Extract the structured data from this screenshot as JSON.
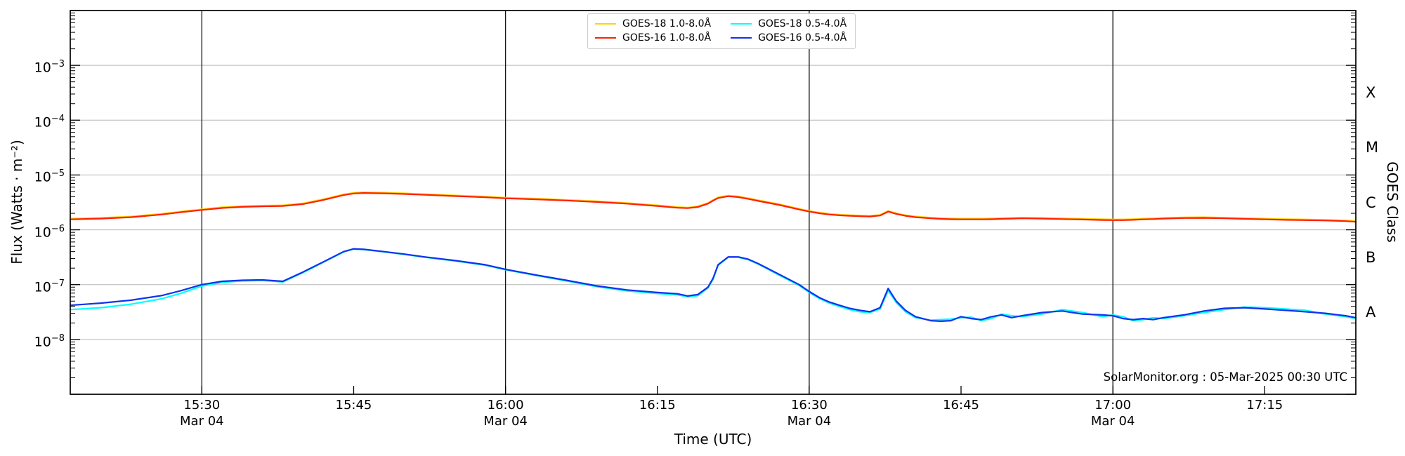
{
  "figure": {
    "annotation": "SolarMonitor.org : 05-Mar-2025 00:30 UTC"
  },
  "legend": {
    "items": [
      {
        "label": "GOES-18 1.0-8.0Å",
        "color": "#ffd300"
      },
      {
        "label": "GOES-16 1.0-8.0Å",
        "color": "#ff2000"
      },
      {
        "label": "GOES-18 0.5-4.0Å",
        "color": "#00ffff"
      },
      {
        "label": "GOES-16 0.5-4.0Å",
        "color": "#1132ee"
      }
    ]
  },
  "chart_data": {
    "type": "line",
    "title": "",
    "xlabel": "Time (UTC)",
    "ylabel": "Flux (Watts · m⁻²)",
    "ylabel_right": "GOES Class",
    "x_axis_note": "minutes after 15:17 UTC on 04-Mar-2025",
    "t_min": 0,
    "t_max": 127,
    "log_top": -2,
    "log_bottom": -9,
    "grid_on": true,
    "grid_color": "#b6b6b6",
    "vline_color": "#151515",
    "legend_position": "top-center",
    "x_ticks": [
      {
        "t": 13,
        "label": "15:30",
        "sublabel": "Mar 04",
        "gridline": true
      },
      {
        "t": 28,
        "label": "15:45",
        "gridline": false
      },
      {
        "t": 43,
        "label": "16:00",
        "sublabel": "Mar 04",
        "gridline": true
      },
      {
        "t": 58,
        "label": "16:15",
        "gridline": false
      },
      {
        "t": 73,
        "label": "16:30",
        "sublabel": "Mar 04",
        "gridline": true
      },
      {
        "t": 88,
        "label": "16:45",
        "gridline": false
      },
      {
        "t": 103,
        "label": "17:00",
        "sublabel": "Mar 04",
        "gridline": true
      },
      {
        "t": 118,
        "label": "17:15",
        "gridline": false
      }
    ],
    "y_ticks": [
      {
        "log": -3,
        "base": "10",
        "exp": "−3"
      },
      {
        "log": -4,
        "base": "10",
        "exp": "−4"
      },
      {
        "log": -5,
        "base": "10",
        "exp": "−5"
      },
      {
        "log": -6,
        "base": "10",
        "exp": "−6"
      },
      {
        "log": -7,
        "base": "10",
        "exp": "−7"
      },
      {
        "log": -8,
        "base": "10",
        "exp": "−8"
      }
    ],
    "class_labels": [
      {
        "label": "X",
        "log": -3.5
      },
      {
        "label": "M",
        "log": -4.5
      },
      {
        "label": "C",
        "log": -5.5
      },
      {
        "label": "B",
        "log": -6.5
      },
      {
        "label": "A",
        "log": -7.5
      }
    ],
    "x": [
      0,
      3,
      6,
      9,
      11,
      13,
      15,
      17,
      19,
      21,
      23,
      25,
      27,
      28,
      29,
      31,
      33,
      35,
      38,
      41,
      43,
      46,
      49,
      52,
      55,
      58,
      60,
      61,
      62,
      63,
      63.5,
      64,
      65,
      66,
      67,
      68,
      70,
      72,
      73,
      74,
      75,
      76,
      77,
      78,
      79,
      80,
      80.8,
      81.6,
      82.5,
      83.5,
      85,
      86,
      87,
      88,
      89,
      90,
      91,
      92,
      93,
      94,
      96,
      98,
      100,
      102,
      103,
      104,
      105,
      106,
      107,
      108,
      110,
      112,
      114,
      116,
      118,
      120,
      122,
      124,
      126,
      127
    ],
    "series": [
      {
        "name": "GOES-18 1.0-8.0Å",
        "color": "#ffd300",
        "width": 2.2,
        "values": [
          1.6e-06,
          1.65e-06,
          1.75e-06,
          1.96e-06,
          2.16e-06,
          2.37e-06,
          2.58e-06,
          2.7e-06,
          2.76e-06,
          2.8e-06,
          3.04e-06,
          3.61e-06,
          4.43e-06,
          4.74e-06,
          4.84e-06,
          4.76e-06,
          4.64e-06,
          4.48e-06,
          4.24e-06,
          4.04e-06,
          3.86e-06,
          3.71e-06,
          3.52e-06,
          3.32e-06,
          3.09e-06,
          2.8e-06,
          2.6e-06,
          2.55e-06,
          2.68e-06,
          3.09e-06,
          3.5e-06,
          3.91e-06,
          4.22e-06,
          4.07e-06,
          3.76e-06,
          3.45e-06,
          2.94e-06,
          2.42e-06,
          2.21e-06,
          2.06e-06,
          1.96e-06,
          1.9e-06,
          1.85e-06,
          1.82e-06,
          1.8e-06,
          1.87e-06,
          2.21e-06,
          2.01e-06,
          1.85e-06,
          1.75e-06,
          1.67e-06,
          1.63e-06,
          1.61e-06,
          1.6e-06,
          1.6e-06,
          1.6e-06,
          1.61e-06,
          1.63e-06,
          1.65e-06,
          1.67e-06,
          1.65e-06,
          1.62e-06,
          1.59e-06,
          1.56e-06,
          1.55e-06,
          1.55e-06,
          1.57e-06,
          1.6e-06,
          1.62e-06,
          1.65e-06,
          1.69e-06,
          1.7e-06,
          1.67e-06,
          1.63e-06,
          1.6e-06,
          1.57e-06,
          1.55e-06,
          1.52e-06,
          1.48e-06,
          1.44e-06
        ]
      },
      {
        "name": "GOES-16 1.0-8.0Å",
        "color": "#ff2000",
        "width": 2.2,
        "values": [
          1.55e-06,
          1.6e-06,
          1.7e-06,
          1.9e-06,
          2.1e-06,
          2.3e-06,
          2.5e-06,
          2.62e-06,
          2.68e-06,
          2.72e-06,
          2.95e-06,
          3.5e-06,
          4.3e-06,
          4.6e-06,
          4.7e-06,
          4.62e-06,
          4.5e-06,
          4.35e-06,
          4.12e-06,
          3.92e-06,
          3.75e-06,
          3.6e-06,
          3.42e-06,
          3.22e-06,
          3e-06,
          2.72e-06,
          2.52e-06,
          2.48e-06,
          2.6e-06,
          3e-06,
          3.4e-06,
          3.8e-06,
          4.1e-06,
          3.95e-06,
          3.65e-06,
          3.35e-06,
          2.85e-06,
          2.35e-06,
          2.15e-06,
          2e-06,
          1.9e-06,
          1.84e-06,
          1.8e-06,
          1.77e-06,
          1.75e-06,
          1.82e-06,
          2.15e-06,
          1.95e-06,
          1.8e-06,
          1.7e-06,
          1.62e-06,
          1.58e-06,
          1.56e-06,
          1.55e-06,
          1.55e-06,
          1.55e-06,
          1.56e-06,
          1.58e-06,
          1.6e-06,
          1.62e-06,
          1.6e-06,
          1.57e-06,
          1.54e-06,
          1.51e-06,
          1.5e-06,
          1.5e-06,
          1.52e-06,
          1.55e-06,
          1.57e-06,
          1.6e-06,
          1.64e-06,
          1.65e-06,
          1.62e-06,
          1.58e-06,
          1.55e-06,
          1.52e-06,
          1.5e-06,
          1.48e-06,
          1.44e-06,
          1.4e-06
        ]
      },
      {
        "name": "GOES-18 0.5-4.0Å",
        "color": "#00ffff",
        "width": 2.2,
        "values": [
          3.5e-08,
          3.8e-08,
          4.4e-08,
          5.5e-08,
          7e-08,
          9.4e-08,
          1.1e-07,
          1.17e-07,
          1.19e-07,
          1.12e-07,
          1.66e-07,
          2.55e-07,
          3.95e-07,
          4.45e-07,
          4.35e-07,
          3.96e-07,
          3.56e-07,
          3.16e-07,
          2.71e-07,
          2.26e-07,
          1.87e-07,
          1.47e-07,
          1.17e-07,
          9.2e-08,
          7.7e-08,
          6.9e-08,
          6.5e-08,
          6e-08,
          6.3e-08,
          8.7e-08,
          1.25e-07,
          2.25e-07,
          3.15e-07,
          3.15e-07,
          2.85e-07,
          2.36e-07,
          1.5e-07,
          9.7e-08,
          7.2e-08,
          5.6e-08,
          4.6e-08,
          4e-08,
          3.5e-08,
          3.2e-08,
          3.1e-08,
          3.6e-08,
          7.8e-08,
          4.7e-08,
          3.2e-08,
          2.5e-08,
          2.25e-08,
          2.3e-08,
          2.35e-08,
          2.5e-08,
          2.55e-08,
          2.2e-08,
          2.4e-08,
          2.9e-08,
          2.7e-08,
          2.6e-08,
          2.9e-08,
          3.5e-08,
          3.1e-08,
          2.6e-08,
          2.8e-08,
          2.6e-08,
          2.2e-08,
          2.3e-08,
          2.5e-08,
          2.4e-08,
          2.7e-08,
          3.1e-08,
          3.5e-08,
          3.9e-08,
          3.8e-08,
          3.6e-08,
          3.4e-08,
          2.9e-08,
          2.6e-08,
          2.4e-08
        ]
      },
      {
        "name": "GOES-16 0.5-4.0Å",
        "color": "#1132ee",
        "width": 2.2,
        "values": [
          4.2e-08,
          4.6e-08,
          5.2e-08,
          6.3e-08,
          7.8e-08,
          1e-07,
          1.15e-07,
          1.2e-07,
          1.22e-07,
          1.15e-07,
          1.7e-07,
          2.6e-07,
          4e-07,
          4.5e-07,
          4.4e-07,
          4e-07,
          3.6e-07,
          3.2e-07,
          2.75e-07,
          2.3e-07,
          1.9e-07,
          1.5e-07,
          1.2e-07,
          9.5e-08,
          8e-08,
          7.2e-08,
          6.8e-08,
          6.2e-08,
          6.6e-08,
          9e-08,
          1.3e-07,
          2.3e-07,
          3.2e-07,
          3.2e-07,
          2.9e-07,
          2.4e-07,
          1.55e-07,
          1e-07,
          7.5e-08,
          5.8e-08,
          4.8e-08,
          4.2e-08,
          3.7e-08,
          3.4e-08,
          3.2e-08,
          3.8e-08,
          8.5e-08,
          5e-08,
          3.4e-08,
          2.6e-08,
          2.2e-08,
          2.15e-08,
          2.2e-08,
          2.6e-08,
          2.4e-08,
          2.3e-08,
          2.6e-08,
          2.8e-08,
          2.5e-08,
          2.7e-08,
          3.1e-08,
          3.3e-08,
          2.9e-08,
          2.8e-08,
          2.7e-08,
          2.4e-08,
          2.3e-08,
          2.4e-08,
          2.3e-08,
          2.5e-08,
          2.8e-08,
          3.3e-08,
          3.7e-08,
          3.8e-08,
          3.6e-08,
          3.4e-08,
          3.2e-08,
          3e-08,
          2.7e-08,
          2.5e-08
        ]
      }
    ]
  }
}
